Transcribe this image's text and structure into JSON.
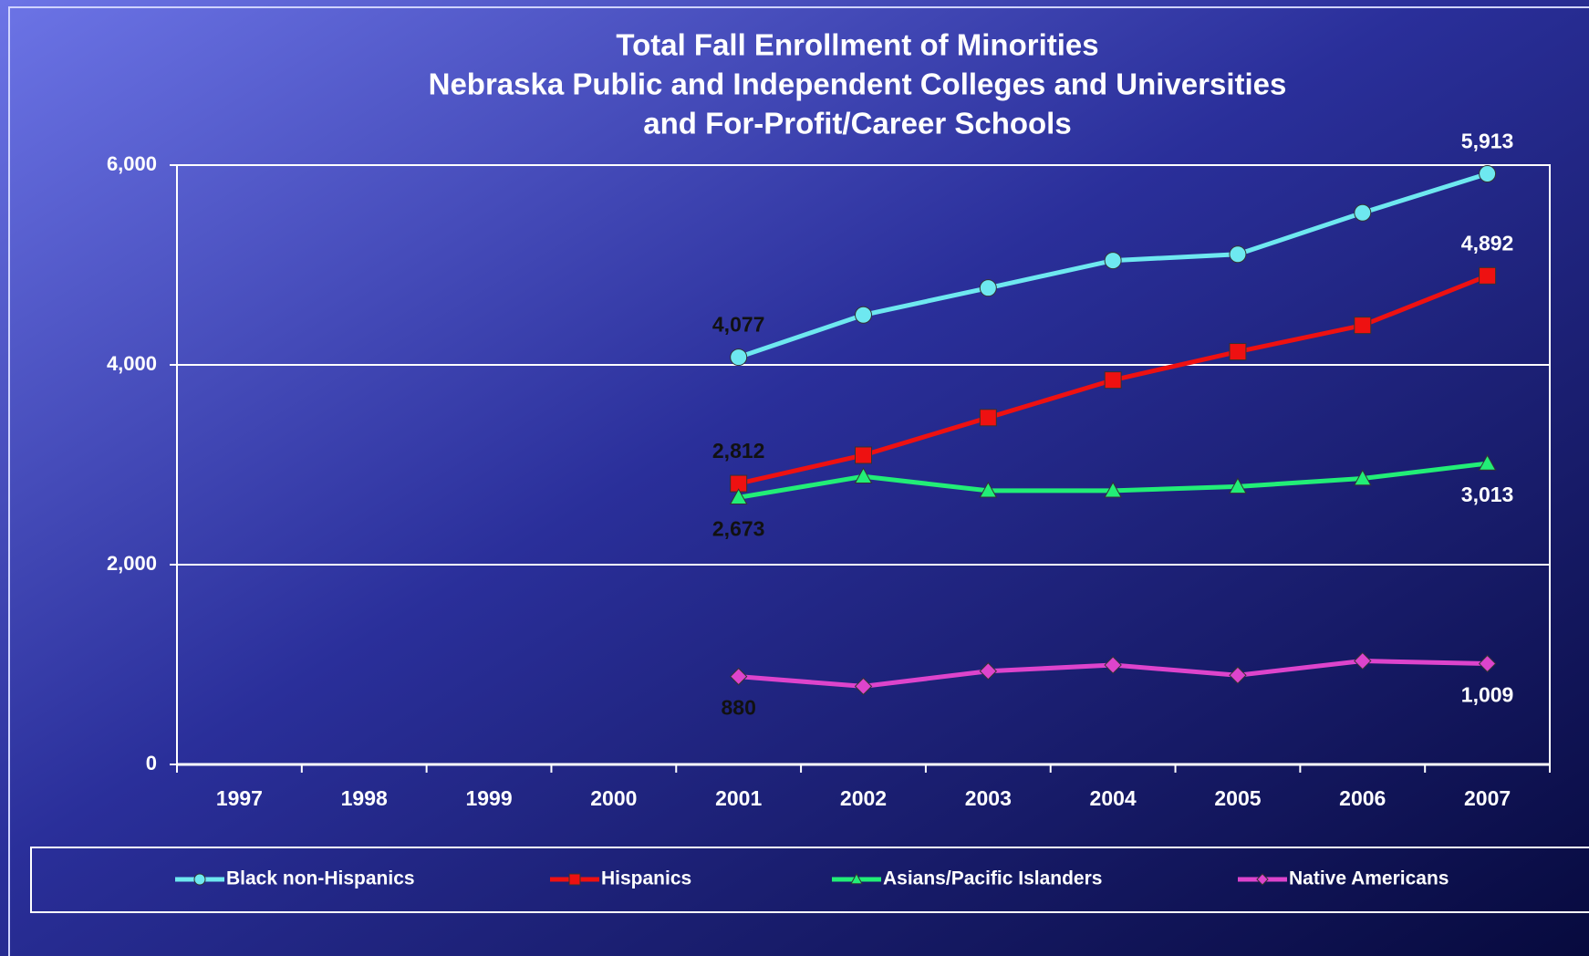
{
  "chart_data": {
    "type": "line",
    "title": [
      "Total Fall Enrollment of Minorities",
      "Nebraska Public and Independent Colleges and Universities",
      "and For-Profit/Career Schools"
    ],
    "categories": [
      "1997",
      "1998",
      "1999",
      "2000",
      "2001",
      "2002",
      "2003",
      "2004",
      "2005",
      "2006",
      "2007"
    ],
    "ylim": [
      0,
      6000
    ],
    "yticks": [
      0,
      {
        "value": 2000,
        "label": "2,000"
      },
      {
        "value": 4000,
        "label": "4,000"
      },
      {
        "value": 6000,
        "label": "6,000"
      }
    ],
    "grid": true,
    "legend": "bottom",
    "series": [
      {
        "name": "Black non-Hispanics",
        "color": "#6ee8f0",
        "marker": "circle",
        "values": [
          null,
          null,
          null,
          null,
          4077,
          4500,
          4770,
          5045,
          5107,
          5523,
          5913
        ],
        "value_labels": [
          null,
          null,
          null,
          null,
          "4,077",
          null,
          null,
          null,
          null,
          null,
          "5,913"
        ]
      },
      {
        "name": "Hispanics",
        "color": "#ee1111",
        "marker": "square",
        "values": [
          null,
          null,
          null,
          null,
          2812,
          3096,
          3472,
          3848,
          4132,
          4396,
          4892
        ],
        "value_labels": [
          null,
          null,
          null,
          null,
          "2,812",
          null,
          null,
          null,
          null,
          null,
          "4,892"
        ]
      },
      {
        "name": "Asians/Pacific Islanders",
        "color": "#22ee77",
        "marker": "triangle",
        "values": [
          null,
          null,
          null,
          null,
          2673,
          2883,
          2741,
          2741,
          2782,
          2863,
          3013
        ],
        "value_labels": [
          null,
          null,
          null,
          null,
          "2,673",
          null,
          null,
          null,
          null,
          null,
          "3,013"
        ]
      },
      {
        "name": "Native Americans",
        "color": "#dd44cc",
        "marker": "diamond",
        "values": [
          null,
          null,
          null,
          null,
          880,
          782,
          934,
          995,
          893,
          1036,
          1009
        ],
        "value_labels": [
          null,
          null,
          null,
          null,
          "880",
          null,
          null,
          null,
          null,
          null,
          "1,009"
        ]
      }
    ]
  }
}
